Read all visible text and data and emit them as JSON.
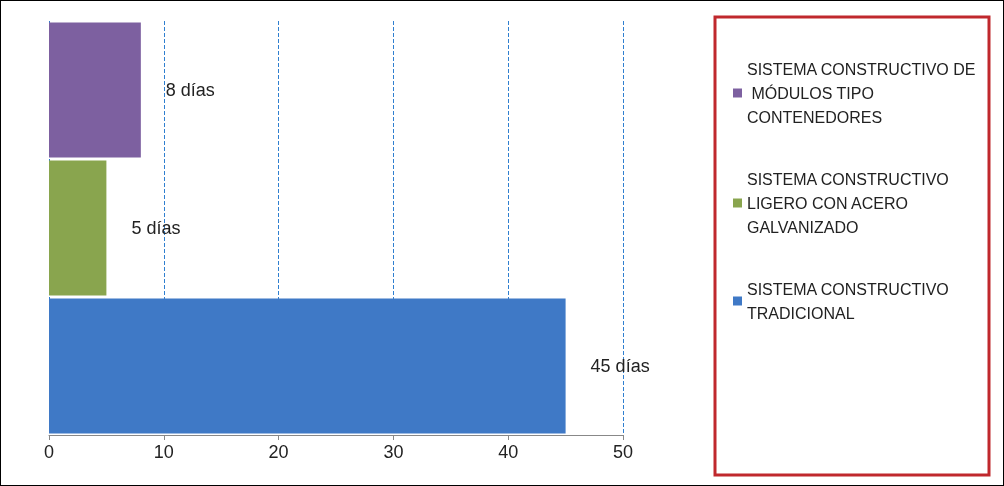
{
  "chart_data": {
    "type": "bar",
    "orientation": "horizontal",
    "stacked": true,
    "categories": [
      null,
      null,
      null
    ],
    "series": [
      {
        "name": "SISTEMA CONSTRUCTIVO DE MÓDULOS TIPO CONTENEDORES",
        "color": "#7d60a0",
        "values": [
          8,
          null,
          null
        ],
        "value_labels": [
          "8 días",
          null,
          null
        ]
      },
      {
        "name": "SISTEMA CONSTRUCTIVO LIGERO CON ACERO GALVANIZADO",
        "color": "#89a54e",
        "values": [
          null,
          5,
          null
        ],
        "value_labels": [
          null,
          "5 días",
          null
        ]
      },
      {
        "name": "SISTEMA CONSTRUCTIVO TRADICIONAL",
        "color": "#3f79c6",
        "values": [
          null,
          null,
          45
        ],
        "value_labels": [
          null,
          null,
          "45 días"
        ]
      }
    ],
    "xlim": [
      0,
      50
    ],
    "xticks": [
      0,
      10,
      20,
      30,
      40,
      50
    ],
    "grid": "x",
    "legend": "right"
  }
}
